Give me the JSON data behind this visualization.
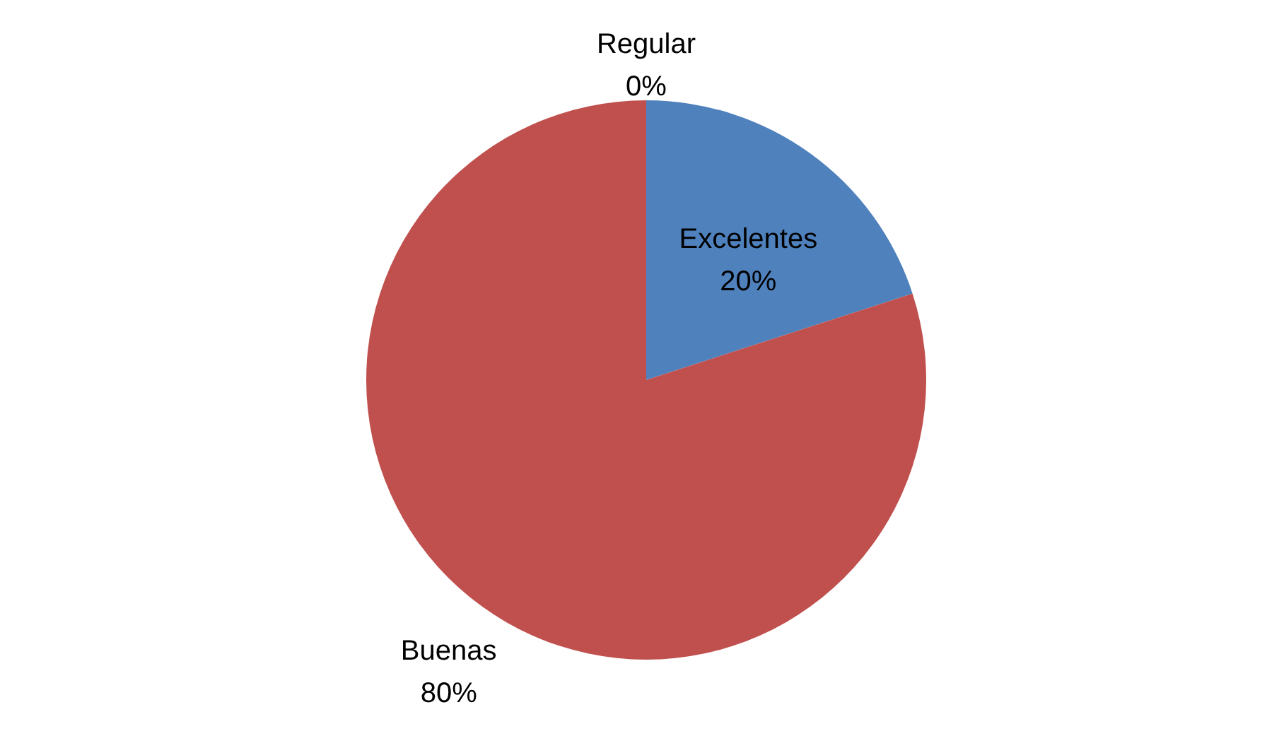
{
  "chart_data": {
    "type": "pie",
    "categories": [
      "Excelentes",
      "Buenas",
      "Regular"
    ],
    "values": [
      20,
      80,
      0
    ],
    "colors": [
      "#4f81bd",
      "#c0504d",
      "#9bbb59"
    ],
    "value_labels": [
      "20%",
      "80%",
      "0%"
    ],
    "legend": false
  }
}
